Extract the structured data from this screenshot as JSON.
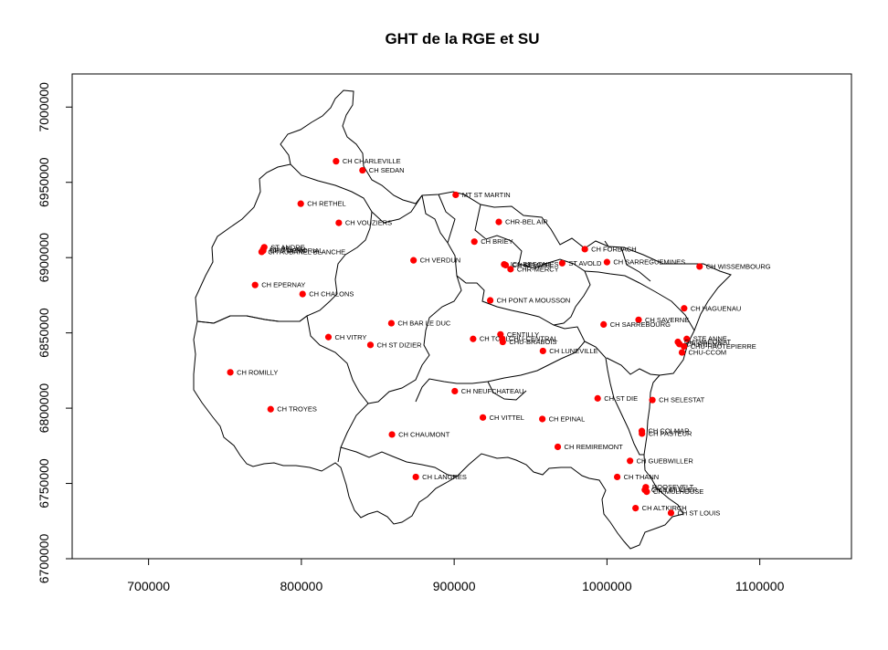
{
  "chart_data": {
    "type": "scatter",
    "title": "GHT de la RGE et SU",
    "xlabel": "",
    "ylabel": "",
    "xlim": [
      650000,
      1160000
    ],
    "ylim": [
      6700000,
      7022000
    ],
    "xticks": [
      700000,
      800000,
      900000,
      1000000,
      1100000
    ],
    "xtick_labels": [
      "700000",
      "800000",
      "900000",
      "1000000",
      "1100000"
    ],
    "yticks": [
      6700000,
      6750000,
      6800000,
      6850000,
      6900000,
      6950000,
      7000000
    ],
    "ytick_labels": [
      "6700000",
      "6750000",
      "6800000",
      "6850000",
      "6900000",
      "6950000",
      "7000000"
    ],
    "point_color": "#ff0000",
    "border_color": "#000000",
    "points": [
      {
        "label": "CH CHARLEVILLE",
        "x": 822700,
        "y": 6964000
      },
      {
        "label": "CH SEDAN",
        "x": 840000,
        "y": 6958000
      },
      {
        "label": "CH RETHEL",
        "x": 799600,
        "y": 6935800
      },
      {
        "label": "CH VOUZIERS",
        "x": 824500,
        "y": 6923100
      },
      {
        "label": "ST ANDRE",
        "x": 775700,
        "y": 6906900
      },
      {
        "label": "CH BELAIR",
        "x": 775000,
        "y": 6905500
      },
      {
        "label": "CHU MEMORIAL",
        "x": 775000,
        "y": 6904600
      },
      {
        "label": "CH AUBANEL BLANCHE",
        "x": 774000,
        "y": 6903800
      },
      {
        "label": "CH EPERNAY",
        "x": 769700,
        "y": 6881800
      },
      {
        "label": "CH CHALONS",
        "x": 800800,
        "y": 6875800
      },
      {
        "label": "CH VERDUN",
        "x": 873400,
        "y": 6898200
      },
      {
        "label": "MT ST MARTIN",
        "x": 901000,
        "y": 6941700
      },
      {
        "label": "CHR-BEL AIR",
        "x": 929200,
        "y": 6923700
      },
      {
        "label": "CH BRIEY",
        "x": 913200,
        "y": 6910600
      },
      {
        "label": "ICL BEGONIES",
        "x": 932700,
        "y": 6895500
      },
      {
        "label": "CH SEMMEL",
        "x": 933700,
        "y": 6895000
      },
      {
        "label": "CHR-MERCY",
        "x": 936900,
        "y": 6892300
      },
      {
        "label": "ST AVOLD",
        "x": 970700,
        "y": 6896300
      },
      {
        "label": "CH FORBACH",
        "x": 985500,
        "y": 6905600
      },
      {
        "label": "CH SARREGUEMINES",
        "x": 1000000,
        "y": 6897000
      },
      {
        "label": "CH WISSEMBOURG",
        "x": 1060600,
        "y": 6894100
      },
      {
        "label": "CH PONT A MOUSSON",
        "x": 923600,
        "y": 6871600
      },
      {
        "label": "CH HAGUENAU",
        "x": 1050500,
        "y": 6866300
      },
      {
        "label": "CH SAVERNE",
        "x": 1020700,
        "y": 6858700
      },
      {
        "label": "CH SARREBOURG",
        "x": 997800,
        "y": 6855600
      },
      {
        "label": "CH BAR LE DUC",
        "x": 858900,
        "y": 6856400
      },
      {
        "label": "CH VITRY",
        "x": 817700,
        "y": 6847200
      },
      {
        "label": "CH ST DIZIER",
        "x": 845200,
        "y": 6842000
      },
      {
        "label": "CENTILLY",
        "x": 930300,
        "y": 6849000
      },
      {
        "label": "CH TOUL",
        "x": 912400,
        "y": 6846000
      },
      {
        "label": "CHU-CENTRAL",
        "x": 931500,
        "y": 6846000
      },
      {
        "label": "CHU-BRABOIS",
        "x": 931800,
        "y": 6844000
      },
      {
        "label": "CH LUNEVILLE",
        "x": 958100,
        "y": 6838000
      },
      {
        "label": "STE ANNE",
        "x": 1052200,
        "y": 6846000
      },
      {
        "label": "CH DIACONAT",
        "x": 1046400,
        "y": 6844000
      },
      {
        "label": "CH RHENA",
        "x": 1047400,
        "y": 6842600
      },
      {
        "label": "CHU-HAUTEPIERRE",
        "x": 1050400,
        "y": 6841000
      },
      {
        "label": "CHU-CCOM",
        "x": 1049100,
        "y": 6837000
      },
      {
        "label": "CH ROMILLY",
        "x": 753500,
        "y": 6823800
      },
      {
        "label": "CH NEUFCHATEAU",
        "x": 900400,
        "y": 6811300
      },
      {
        "label": "CH ST DIE",
        "x": 993900,
        "y": 6806500
      },
      {
        "label": "CH SELESTAT",
        "x": 1029700,
        "y": 6805400
      },
      {
        "label": "CH TROYES",
        "x": 779900,
        "y": 6799300
      },
      {
        "label": "CH VITTEL",
        "x": 918800,
        "y": 6793800
      },
      {
        "label": "CH EPINAL",
        "x": 957700,
        "y": 6792800
      },
      {
        "label": "CH COLMAR",
        "x": 1022800,
        "y": 6784800
      },
      {
        "label": "CH PASTEUR",
        "x": 1022900,
        "y": 6783100
      },
      {
        "label": "CH CHAUMONT",
        "x": 859300,
        "y": 6782500
      },
      {
        "label": "CH REMIREMONT",
        "x": 967800,
        "y": 6774300
      },
      {
        "label": "CH GUEBWILLER",
        "x": 1015100,
        "y": 6765000
      },
      {
        "label": "CH LANGRES",
        "x": 874900,
        "y": 6754300
      },
      {
        "label": "CH THANN",
        "x": 1006700,
        "y": 6754300
      },
      {
        "label": "ROOSEVELT",
        "x": 1025400,
        "y": 6747500
      },
      {
        "label": "CH E MULLER",
        "x": 1024800,
        "y": 6745700
      },
      {
        "label": "CH MULHOUSE",
        "x": 1026000,
        "y": 6744500
      },
      {
        "label": "CH ALTKIRCH",
        "x": 1018700,
        "y": 6733600
      },
      {
        "label": "CH ST LOUIS",
        "x": 1041900,
        "y": 6730400
      }
    ]
  }
}
